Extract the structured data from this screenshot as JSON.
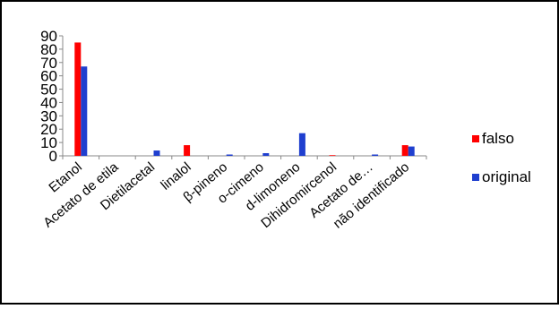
{
  "chart_data": {
    "type": "bar",
    "categories": [
      "Etanol",
      "Acetato de etila",
      "Dietilacetal",
      "linalol",
      "β-pineno",
      "o-cimeno",
      "d-limoneno",
      "Dihidromircenol",
      "Acetato de…",
      "não identificado"
    ],
    "series": [
      {
        "name": "falso",
        "color": "#ff0000",
        "values": [
          85,
          0,
          0,
          8,
          0,
          0,
          0,
          0.5,
          0,
          8
        ]
      },
      {
        "name": "original",
        "color": "#1f3fcf",
        "values": [
          67,
          0,
          4,
          0,
          1,
          2,
          17,
          0,
          1,
          7
        ]
      }
    ],
    "yticks": [
      0,
      10,
      20,
      30,
      40,
      50,
      60,
      70,
      80,
      90
    ],
    "ylim": [
      0,
      90
    ],
    "legend_position": "right",
    "grid": false
  }
}
